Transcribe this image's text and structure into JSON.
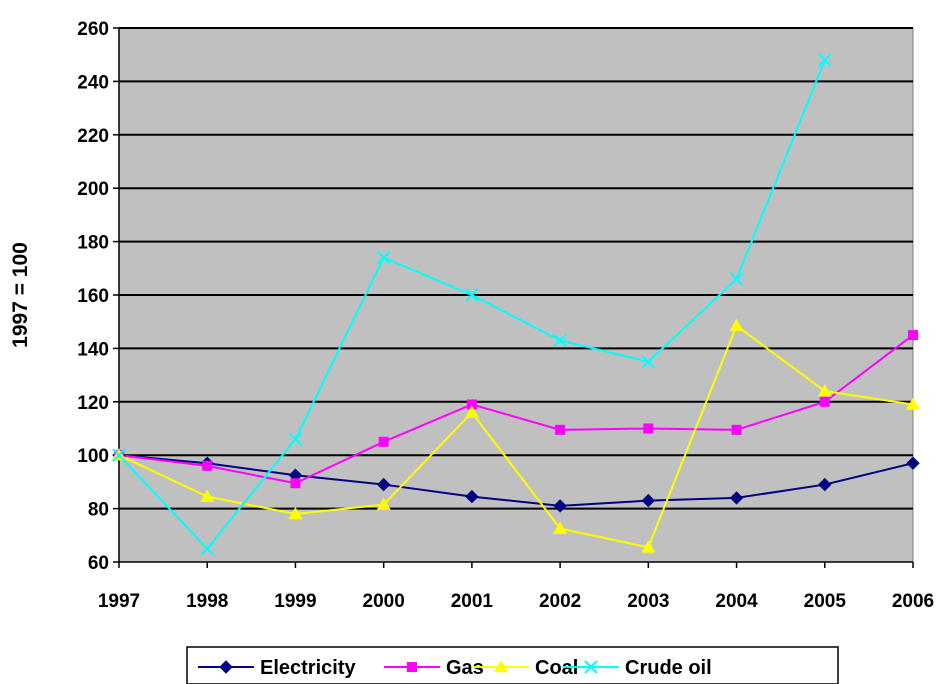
{
  "chart_data": {
    "type": "line",
    "title": "",
    "xlabel": "",
    "ylabel": "1997 = 100",
    "x": [
      "1997",
      "1998",
      "1999",
      "2000",
      "2001",
      "2002",
      "2003",
      "2004",
      "2005",
      "2006"
    ],
    "ylim": [
      60,
      260
    ],
    "yticks": [
      60,
      80,
      100,
      120,
      140,
      160,
      180,
      200,
      220,
      240,
      260
    ],
    "grid": true,
    "plot_background": "#c0c0c0",
    "legend_position": "bottom",
    "series": [
      {
        "name": "Electricity",
        "color": "#000080",
        "marker": "diamond",
        "values": [
          100,
          97,
          92.5,
          89,
          84.5,
          81,
          83,
          84,
          89,
          97
        ]
      },
      {
        "name": "Gas",
        "color": "#ff00ff",
        "marker": "square",
        "values": [
          100,
          96,
          89.5,
          105,
          119,
          109.5,
          110,
          109.5,
          120,
          145
        ]
      },
      {
        "name": "Coal",
        "color": "#ffff00",
        "marker": "triangle",
        "values": [
          100,
          84.5,
          78,
          81.5,
          116,
          72.5,
          65.5,
          148.5,
          124,
          119
        ]
      },
      {
        "name": "Crude oil",
        "color": "#00ffff",
        "marker": "x",
        "values": [
          100,
          65,
          106,
          174,
          160,
          143,
          135,
          166,
          248,
          null
        ]
      }
    ]
  }
}
